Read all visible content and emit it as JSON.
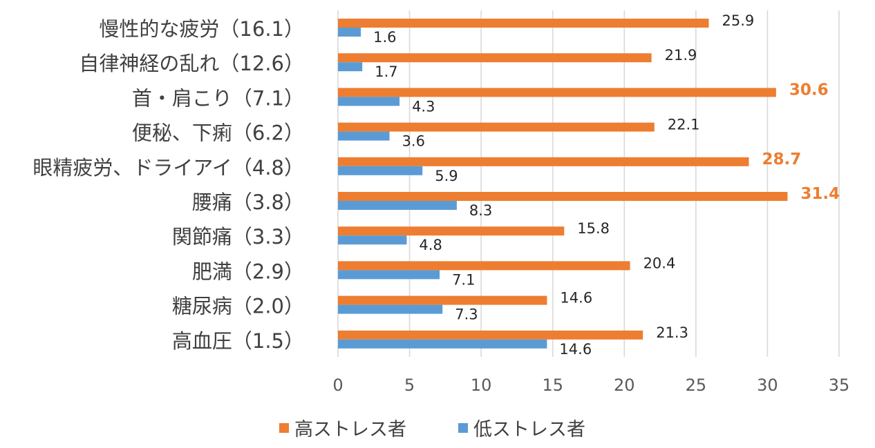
{
  "chart_data": {
    "type": "bar",
    "orientation": "horizontal",
    "categories": [
      "慢性的な疲労（16.1）",
      "自律神経の乱れ（12.6）",
      "首・肩こり（7.1）",
      "便秘、下痢（6.2）",
      "眼精疲労、ドライアイ（4.8）",
      "腰痛（3.8）",
      "関節痛（3.3）",
      "肥満（2.9）",
      "糖尿病（2.0）",
      "高血圧（1.5）"
    ],
    "series": [
      {
        "name": "高ストレス者",
        "color": "#ed7d31",
        "values": [
          25.9,
          21.9,
          30.6,
          22.1,
          28.7,
          31.4,
          15.8,
          20.4,
          14.6,
          21.3
        ],
        "labels": [
          "25.9",
          "21.9",
          "30.6",
          "22.1",
          "28.7",
          "31.4",
          "15.8",
          "20.4",
          "14.6",
          "21.3"
        ],
        "highlighted": [
          false,
          false,
          true,
          false,
          true,
          true,
          false,
          false,
          false,
          false
        ]
      },
      {
        "name": "低ストレス者",
        "color": "#5b9bd5",
        "values": [
          1.6,
          1.7,
          4.3,
          3.6,
          5.9,
          8.3,
          4.8,
          7.1,
          7.3,
          14.6
        ],
        "labels": [
          "1.6",
          "1.7",
          "4.3",
          "3.6",
          "5.9",
          "8.3",
          "4.8",
          "7.1",
          "7.3",
          "14.6"
        ]
      }
    ],
    "xlim": [
      0,
      35
    ],
    "xticks": [
      "0",
      "5",
      "10",
      "15",
      "20",
      "25",
      "30",
      "35"
    ],
    "grid": true,
    "legend_position": "bottom-center",
    "title": "",
    "xlabel": "",
    "ylabel": ""
  }
}
